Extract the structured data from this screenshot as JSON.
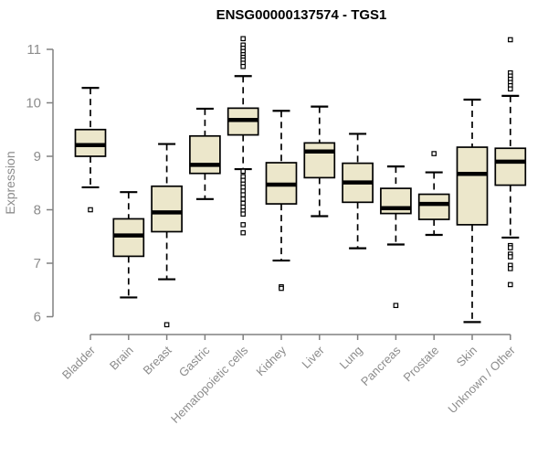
{
  "chart_data": {
    "type": "boxplot",
    "title": "ENSG00000137574 - TGS1",
    "ylabel": "Expression",
    "xlabel": "",
    "ylim": [
      6,
      11
    ],
    "yticks": [
      6,
      7,
      8,
      9,
      10,
      11
    ],
    "grid": false,
    "legend": false,
    "categories": [
      "Bladder",
      "Brain",
      "Breast",
      "Gastric",
      "Hematopoietic cells",
      "Kidney",
      "Liver",
      "Lung",
      "Pancreas",
      "Prostate",
      "Skin",
      "Unknown / Other"
    ],
    "series": [
      {
        "category": "Bladder",
        "whisker_low": 8.42,
        "q1": 9.0,
        "median": 9.21,
        "q3": 9.5,
        "whisker_high": 10.28,
        "outliers": [
          8.0
        ]
      },
      {
        "category": "Brain",
        "whisker_low": 6.36,
        "q1": 7.13,
        "median": 7.52,
        "q3": 7.83,
        "whisker_high": 8.33,
        "outliers": []
      },
      {
        "category": "Breast",
        "whisker_low": 6.7,
        "q1": 7.59,
        "median": 7.95,
        "q3": 8.44,
        "whisker_high": 9.23,
        "outliers": [
          5.85
        ]
      },
      {
        "category": "Gastric",
        "whisker_low": 8.2,
        "q1": 8.68,
        "median": 8.84,
        "q3": 9.38,
        "whisker_high": 9.89,
        "outliers": []
      },
      {
        "category": "Hematopoietic cells",
        "whisker_low": 8.76,
        "q1": 9.4,
        "median": 9.68,
        "q3": 9.9,
        "whisker_high": 10.5,
        "outliers": [
          11.2,
          11.08,
          11.02,
          10.96,
          10.9,
          10.85,
          10.8,
          10.74,
          10.68,
          8.72,
          8.62,
          8.55,
          8.48,
          8.42,
          8.35,
          8.28,
          8.2,
          8.12,
          8.05,
          7.98,
          7.92,
          7.72,
          7.57
        ]
      },
      {
        "category": "Kidney",
        "whisker_low": 7.05,
        "q1": 8.11,
        "median": 8.47,
        "q3": 8.88,
        "whisker_high": 9.85,
        "outliers": [
          6.56,
          6.53
        ]
      },
      {
        "category": "Liver",
        "whisker_low": 7.88,
        "q1": 8.6,
        "median": 9.09,
        "q3": 9.25,
        "whisker_high": 9.93,
        "outliers": []
      },
      {
        "category": "Lung",
        "whisker_low": 7.28,
        "q1": 8.14,
        "median": 8.51,
        "q3": 8.87,
        "whisker_high": 9.42,
        "outliers": []
      },
      {
        "category": "Pancreas",
        "whisker_low": 7.35,
        "q1": 7.93,
        "median": 8.03,
        "q3": 8.4,
        "whisker_high": 8.81,
        "outliers": [
          6.21
        ]
      },
      {
        "category": "Prostate",
        "whisker_low": 7.53,
        "q1": 7.82,
        "median": 8.11,
        "q3": 8.29,
        "whisker_high": 8.7,
        "outliers": [
          9.05
        ]
      },
      {
        "category": "Skin",
        "whisker_low": 5.9,
        "q1": 7.72,
        "median": 8.67,
        "q3": 9.17,
        "whisker_high": 10.06,
        "outliers": []
      },
      {
        "category": "Unknown / Other",
        "whisker_low": 7.48,
        "q1": 8.46,
        "median": 8.9,
        "q3": 9.15,
        "whisker_high": 10.13,
        "outliers": [
          11.18,
          10.56,
          10.5,
          10.44,
          10.38,
          10.32,
          10.26,
          7.33,
          7.29,
          7.17,
          7.12,
          6.96,
          6.9,
          6.6
        ]
      }
    ],
    "colors": {
      "box_fill": "#ece7cb",
      "box_border": "#000000",
      "median": "#000000",
      "whisker": "#000000",
      "outlier_stroke": "#000000",
      "axis": "#808080",
      "tick_label": "#8c8c8c",
      "title": "#000000"
    }
  }
}
